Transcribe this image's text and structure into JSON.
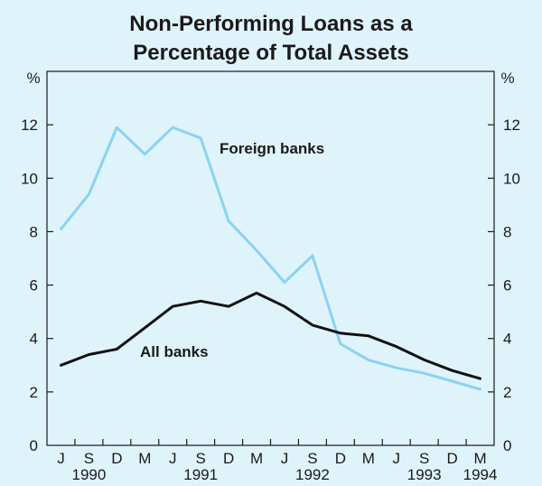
{
  "chart_data": {
    "type": "line",
    "title_lines": [
      "Non-Performing Loans as a",
      "Percentage of Total Assets"
    ],
    "ylabel_left": "%",
    "ylabel_right": "%",
    "ylim": [
      0,
      14
    ],
    "yticks": [
      0,
      2,
      4,
      6,
      8,
      10,
      12
    ],
    "x": [
      "J 1990",
      "S 1990",
      "D 1990",
      "M 1991",
      "J 1991",
      "S 1991",
      "D 1991",
      "M 1992",
      "J 1992",
      "S 1992",
      "D 1992",
      "M 1993",
      "J 1993",
      "S 1993",
      "D 1993",
      "M 1994"
    ],
    "month_labels": [
      "J",
      "S",
      "D",
      "M",
      "J",
      "S",
      "D",
      "M",
      "J",
      "S",
      "D",
      "M",
      "J",
      "S",
      "D",
      "M"
    ],
    "year_labels": [
      {
        "label": "1990",
        "index": 1
      },
      {
        "label": "1991",
        "index": 5
      },
      {
        "label": "1992",
        "index": 9
      },
      {
        "label": "1993",
        "index": 13
      },
      {
        "label": "1994",
        "index": 15
      }
    ],
    "grid": false,
    "series": [
      {
        "name": "Foreign banks",
        "color": "#8ad3f0",
        "values": [
          8.1,
          9.4,
          11.9,
          10.9,
          11.9,
          11.5,
          8.4,
          7.3,
          6.1,
          7.1,
          3.8,
          3.2,
          2.9,
          2.7,
          2.4,
          2.1
        ]
      },
      {
        "name": "All banks",
        "color": "#111111",
        "values": [
          3.0,
          3.4,
          3.6,
          4.4,
          5.2,
          5.4,
          5.2,
          5.7,
          5.2,
          4.5,
          4.2,
          4.1,
          3.7,
          3.2,
          2.8,
          2.5
        ]
      }
    ]
  }
}
